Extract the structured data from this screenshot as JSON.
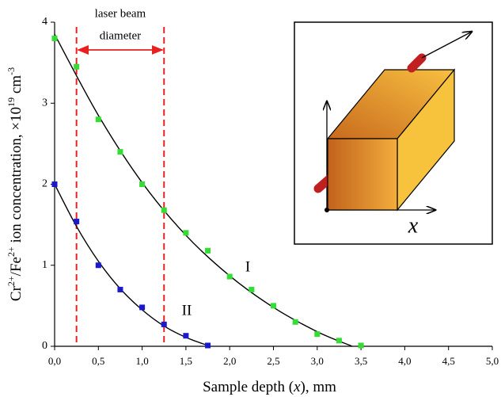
{
  "chart_data": {
    "type": "scatter",
    "x_label_parts": [
      "Sample depth (",
      "x",
      "), mm"
    ],
    "y_label_parts": [
      "Cr",
      "2+",
      "/Fe",
      "2+",
      " ion concentration, ×10",
      "19",
      " cm",
      "-3"
    ],
    "annotation_lines": [
      "laser beam",
      "diameter"
    ],
    "beam_edges": [
      0.25,
      1.25
    ],
    "beam_color": "#e82020",
    "inset_label": "x",
    "xlim": [
      0,
      5
    ],
    "ylim": [
      0,
      4
    ],
    "xticks": [
      {
        "value": 0,
        "label": "0,0"
      },
      {
        "value": 0.5,
        "label": "0,5"
      },
      {
        "value": 1,
        "label": "1,0"
      },
      {
        "value": 1.5,
        "label": "1,5"
      },
      {
        "value": 2,
        "label": "2,0"
      },
      {
        "value": 2.5,
        "label": "2,5"
      },
      {
        "value": 3,
        "label": "3,0"
      },
      {
        "value": 3.5,
        "label": "3,5"
      },
      {
        "value": 4,
        "label": "4,0"
      },
      {
        "value": 4.5,
        "label": "4,5"
      },
      {
        "value": 5,
        "label": "5,0"
      }
    ],
    "yticks": [
      0,
      1,
      2,
      3,
      4
    ],
    "series": [
      {
        "name": "I",
        "color": "#33dd33",
        "x": [
          0,
          0.25,
          0.5,
          0.75,
          1.0,
          1.25,
          1.5,
          1.75,
          2.0,
          2.25,
          2.5,
          2.75,
          3.0,
          3.25,
          3.5
        ],
        "values": [
          3.8,
          3.45,
          2.8,
          2.4,
          2.0,
          1.68,
          1.4,
          1.18,
          0.86,
          0.7,
          0.5,
          0.3,
          0.15,
          0.07,
          0.01
        ],
        "fit": {
          "x": [
            0,
            0.5,
            1,
            1.5,
            2,
            2.5,
            3,
            3.4
          ],
          "values": [
            3.85,
            2.85,
            2.02,
            1.37,
            0.87,
            0.48,
            0.18,
            0.0
          ]
        }
      },
      {
        "name": "II",
        "color": "#1a1acc",
        "x": [
          0,
          0.25,
          0.5,
          0.75,
          1.0,
          1.25,
          1.5,
          1.75
        ],
        "values": [
          2.0,
          1.54,
          1.0,
          0.7,
          0.48,
          0.27,
          0.13,
          0.01
        ],
        "fit": {
          "x": [
            0,
            0.25,
            0.5,
            0.75,
            1,
            1.25,
            1.5,
            1.75
          ],
          "values": [
            2.0,
            1.48,
            1.05,
            0.71,
            0.45,
            0.25,
            0.11,
            0.01
          ]
        }
      }
    ]
  }
}
